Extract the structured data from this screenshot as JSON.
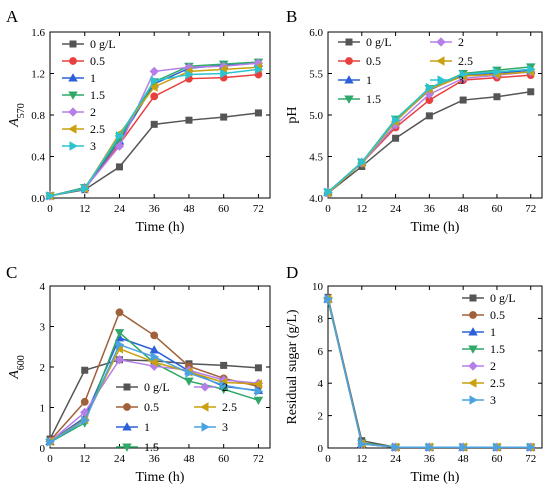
{
  "figure": {
    "panels": [
      "A",
      "B",
      "C",
      "D"
    ]
  },
  "chart_data": [
    {
      "panel": "A",
      "type": "line",
      "xlabel": "Time (h)",
      "ylabel": "A570",
      "ylabel_main": "A",
      "ylabel_sub": "570",
      "x": [
        0,
        12,
        24,
        36,
        48,
        60,
        72
      ],
      "xticks": [
        0,
        12,
        24,
        36,
        48,
        60,
        72
      ],
      "xlim": [
        0,
        76
      ],
      "ylim": [
        0,
        1.6
      ],
      "yticks": [
        0.0,
        0.4,
        0.8,
        1.2,
        1.6
      ],
      "ytick_labels": [
        "0.0",
        "0.4",
        "0.8",
        "1.2",
        "1.6"
      ],
      "legend": {
        "placement": "top-left",
        "columns": 1
      },
      "series": [
        {
          "name": "0 g/L",
          "color": "#555555",
          "marker": "square",
          "values": [
            0.02,
            0.08,
            0.3,
            0.71,
            0.75,
            0.78,
            0.82
          ]
        },
        {
          "name": "0.5",
          "color": "#e8403f",
          "marker": "circle",
          "values": [
            0.02,
            0.09,
            0.52,
            0.98,
            1.15,
            1.16,
            1.19
          ]
        },
        {
          "name": "1",
          "color": "#2d60d8",
          "marker": "triangle-up",
          "values": [
            0.02,
            0.1,
            0.55,
            1.1,
            1.25,
            1.28,
            1.3
          ]
        },
        {
          "name": "1.5",
          "color": "#2fa869",
          "marker": "triangle-down",
          "values": [
            0.02,
            0.1,
            0.57,
            1.12,
            1.27,
            1.29,
            1.31
          ]
        },
        {
          "name": "2",
          "color": "#b57ee8",
          "marker": "diamond",
          "values": [
            0.02,
            0.09,
            0.5,
            1.22,
            1.26,
            1.27,
            1.3
          ]
        },
        {
          "name": "2.5",
          "color": "#c9a10f",
          "marker": "triangle-left",
          "values": [
            0.02,
            0.09,
            0.62,
            1.07,
            1.22,
            1.24,
            1.26
          ]
        },
        {
          "name": "3",
          "color": "#2bc3cf",
          "marker": "triangle-right",
          "values": [
            0.02,
            0.09,
            0.6,
            1.13,
            1.19,
            1.2,
            1.24
          ]
        }
      ]
    },
    {
      "panel": "B",
      "type": "line",
      "xlabel": "Time (h)",
      "ylabel": "pH",
      "x": [
        0,
        12,
        24,
        36,
        48,
        60,
        72
      ],
      "xticks": [
        0,
        12,
        24,
        36,
        48,
        60,
        72
      ],
      "xlim": [
        0,
        76
      ],
      "ylim": [
        4.0,
        6.0
      ],
      "yticks": [
        4.0,
        4.5,
        5.0,
        5.5,
        6.0
      ],
      "ytick_labels": [
        "4.0",
        "4.5",
        "5.0",
        "5.5",
        "6.0"
      ],
      "legend": {
        "placement": "top-left",
        "columns": 2
      },
      "series": [
        {
          "name": "0 g/L",
          "color": "#555555",
          "marker": "square",
          "values": [
            4.06,
            4.38,
            4.72,
            4.99,
            5.18,
            5.22,
            5.28
          ]
        },
        {
          "name": "0.5",
          "color": "#e8403f",
          "marker": "circle",
          "values": [
            4.06,
            4.42,
            4.85,
            5.18,
            5.42,
            5.45,
            5.48
          ]
        },
        {
          "name": "1",
          "color": "#2d60d8",
          "marker": "triangle-up",
          "values": [
            4.07,
            4.43,
            4.93,
            5.3,
            5.48,
            5.5,
            5.54
          ]
        },
        {
          "name": "1.5",
          "color": "#2fa869",
          "marker": "triangle-down",
          "values": [
            4.07,
            4.43,
            4.95,
            5.32,
            5.5,
            5.54,
            5.58
          ]
        },
        {
          "name": "2",
          "color": "#b57ee8",
          "marker": "diamond",
          "values": [
            4.06,
            4.42,
            4.88,
            5.25,
            5.44,
            5.48,
            5.52
          ]
        },
        {
          "name": "2.5",
          "color": "#c9a10f",
          "marker": "triangle-left",
          "values": [
            4.06,
            4.42,
            4.92,
            5.31,
            5.47,
            5.49,
            5.52
          ]
        },
        {
          "name": "3",
          "color": "#2bc3cf",
          "marker": "triangle-right",
          "values": [
            4.07,
            4.43,
            4.94,
            5.33,
            5.49,
            5.52,
            5.55
          ]
        }
      ]
    },
    {
      "panel": "C",
      "type": "line",
      "xlabel": "Time (h)",
      "ylabel": "A600",
      "ylabel_main": "A",
      "ylabel_sub": "600",
      "x": [
        0,
        12,
        24,
        36,
        48,
        60,
        72
      ],
      "xticks": [
        0,
        12,
        24,
        36,
        48,
        60,
        72
      ],
      "xlim": [
        0,
        76
      ],
      "ylim": [
        0,
        4
      ],
      "yticks": [
        0,
        1,
        2,
        3,
        4
      ],
      "ytick_labels": [
        "0",
        "1",
        "2",
        "3",
        "4"
      ],
      "legend": {
        "placement": "center-right",
        "columns": 2
      },
      "series": [
        {
          "name": "0 g/L",
          "color": "#555555",
          "marker": "square",
          "values": [
            0.22,
            1.92,
            2.18,
            2.15,
            2.08,
            2.04,
            1.98
          ]
        },
        {
          "name": "0.5",
          "color": "#a0603a",
          "marker": "circle",
          "values": [
            0.18,
            1.14,
            3.35,
            2.78,
            2.02,
            1.72,
            1.52
          ]
        },
        {
          "name": "1",
          "color": "#2d60d8",
          "marker": "triangle-up",
          "values": [
            0.16,
            0.75,
            2.72,
            2.42,
            1.9,
            1.52,
            1.42
          ]
        },
        {
          "name": "1.5",
          "color": "#2fa869",
          "marker": "triangle-down",
          "values": [
            0.14,
            0.62,
            2.85,
            2.1,
            1.65,
            1.45,
            1.18
          ]
        },
        {
          "name": "2",
          "color": "#b57ee8",
          "marker": "diamond",
          "values": [
            0.16,
            0.88,
            2.18,
            2.02,
            1.92,
            1.68,
            1.6
          ]
        },
        {
          "name": "2.5",
          "color": "#c9a10f",
          "marker": "triangle-left",
          "values": [
            0.16,
            0.7,
            2.45,
            2.12,
            1.88,
            1.62,
            1.58
          ]
        },
        {
          "name": "3",
          "color": "#4aa3e0",
          "marker": "triangle-right",
          "values": [
            0.15,
            0.68,
            2.55,
            2.25,
            1.85,
            1.55,
            1.4
          ]
        }
      ]
    },
    {
      "panel": "D",
      "type": "line",
      "xlabel": "Time (h)",
      "ylabel": "Residual sugar (g/L)",
      "x": [
        0,
        12,
        24,
        36,
        48,
        60,
        72
      ],
      "xticks": [
        0,
        12,
        24,
        36,
        48,
        60,
        72
      ],
      "xlim": [
        0,
        76
      ],
      "ylim": [
        0,
        10
      ],
      "yticks": [
        0,
        2,
        4,
        6,
        8,
        10
      ],
      "ytick_labels": [
        "0",
        "2",
        "4",
        "6",
        "8",
        "10"
      ],
      "legend": {
        "placement": "top-right",
        "columns": 1
      },
      "series": [
        {
          "name": "0 g/L",
          "color": "#555555",
          "marker": "square",
          "values": [
            9.3,
            0.45,
            0.05,
            0.05,
            0.05,
            0.05,
            0.05
          ]
        },
        {
          "name": "0.5",
          "color": "#a0603a",
          "marker": "circle",
          "values": [
            9.2,
            0.3,
            0.05,
            0.05,
            0.05,
            0.05,
            0.05
          ]
        },
        {
          "name": "1",
          "color": "#2d60d8",
          "marker": "triangle-up",
          "values": [
            9.2,
            0.25,
            0.05,
            0.05,
            0.05,
            0.05,
            0.05
          ]
        },
        {
          "name": "1.5",
          "color": "#2fa869",
          "marker": "triangle-down",
          "values": [
            9.1,
            0.3,
            0.05,
            0.05,
            0.05,
            0.05,
            0.05
          ]
        },
        {
          "name": "2",
          "color": "#b57ee8",
          "marker": "diamond",
          "values": [
            9.2,
            0.25,
            0.05,
            0.05,
            0.05,
            0.05,
            0.05
          ]
        },
        {
          "name": "2.5",
          "color": "#c9a10f",
          "marker": "triangle-left",
          "values": [
            9.2,
            0.25,
            0.05,
            0.05,
            0.05,
            0.05,
            0.05
          ]
        },
        {
          "name": "3",
          "color": "#4aa3e0",
          "marker": "triangle-right",
          "values": [
            9.2,
            0.25,
            0.05,
            0.05,
            0.05,
            0.05,
            0.05
          ]
        }
      ]
    }
  ]
}
